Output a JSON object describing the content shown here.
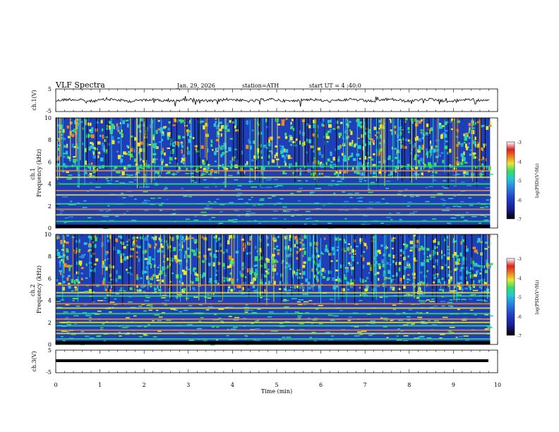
{
  "header": {
    "title": "VLF  Spectra",
    "date": "Jan. 29, 2026",
    "station": "station=ATH",
    "start": "start  UT  =   4  :40:0"
  },
  "chart_data": [
    {
      "type": "line",
      "panel": "ch1-waveform",
      "ylabel": "ch.1(V)",
      "ylim": [
        -5,
        5
      ],
      "ytick_labels": [
        "5",
        "-5"
      ],
      "xlim": [
        0,
        10
      ],
      "x_end": 9.83,
      "series": [
        {
          "values": "noisy trace centred near 0 V, excursions about ±1 V with occasional spikes"
        }
      ]
    },
    {
      "type": "heatmap",
      "panel": "ch1-spectrogram",
      "ylabel": "ch.1\nFrequency (kHz)",
      "ylim": [
        0,
        10
      ],
      "ytick_labels": [
        "0",
        "2",
        "4",
        "6",
        "8",
        "10"
      ],
      "xlim": [
        0,
        10
      ],
      "colorbar": {
        "label": "log(PSD)(V²/Hz)",
        "range": [
          -7,
          -3
        ],
        "ticks": [
          "-3",
          "-4",
          "-5",
          "-6",
          "-7"
        ]
      },
      "bands_khz": [
        0.6,
        1.2,
        1.7,
        2.2,
        3.0,
        3.4,
        4.0,
        4.6,
        5.2,
        5.6
      ]
    },
    {
      "type": "heatmap",
      "panel": "ch2-spectrogram",
      "ylabel": "ch.2\nFrequency (kHz)",
      "ylim": [
        0,
        10
      ],
      "ytick_labels": [
        "0",
        "2",
        "4",
        "6",
        "8",
        "10"
      ],
      "xlim": [
        0,
        10
      ],
      "colorbar": {
        "label": "log(PSD)(V²/Hz)",
        "range": [
          -7,
          -3
        ],
        "ticks": [
          "-3",
          "-4",
          "-5",
          "-6",
          "-7"
        ]
      },
      "bands_khz": [
        0.5,
        1.0,
        1.3,
        1.7,
        2.0,
        2.3,
        2.8,
        3.3,
        3.7,
        4.4,
        4.7,
        5.4
      ]
    },
    {
      "type": "line",
      "panel": "ch3-waveform",
      "ylabel": "ch.3(V)",
      "ylim": [
        -5,
        5
      ],
      "ytick_labels": [
        "5",
        "-5"
      ],
      "xlim": [
        0,
        10
      ],
      "xlabel": "Time  (min)",
      "xtick_labels": [
        "0",
        "1",
        "2",
        "3",
        "4",
        "5",
        "6",
        "7",
        "8",
        "9",
        "10"
      ],
      "series": [
        {
          "values": "flat thick trace at about -2 V"
        }
      ]
    }
  ],
  "colors": {
    "scale": [
      "#000000",
      "#1a1a8c",
      "#2244cc",
      "#2a8ae0",
      "#22c8d8",
      "#33dd66",
      "#e6e633",
      "#ee8822",
      "#dd2222",
      "#ffffff"
    ]
  }
}
